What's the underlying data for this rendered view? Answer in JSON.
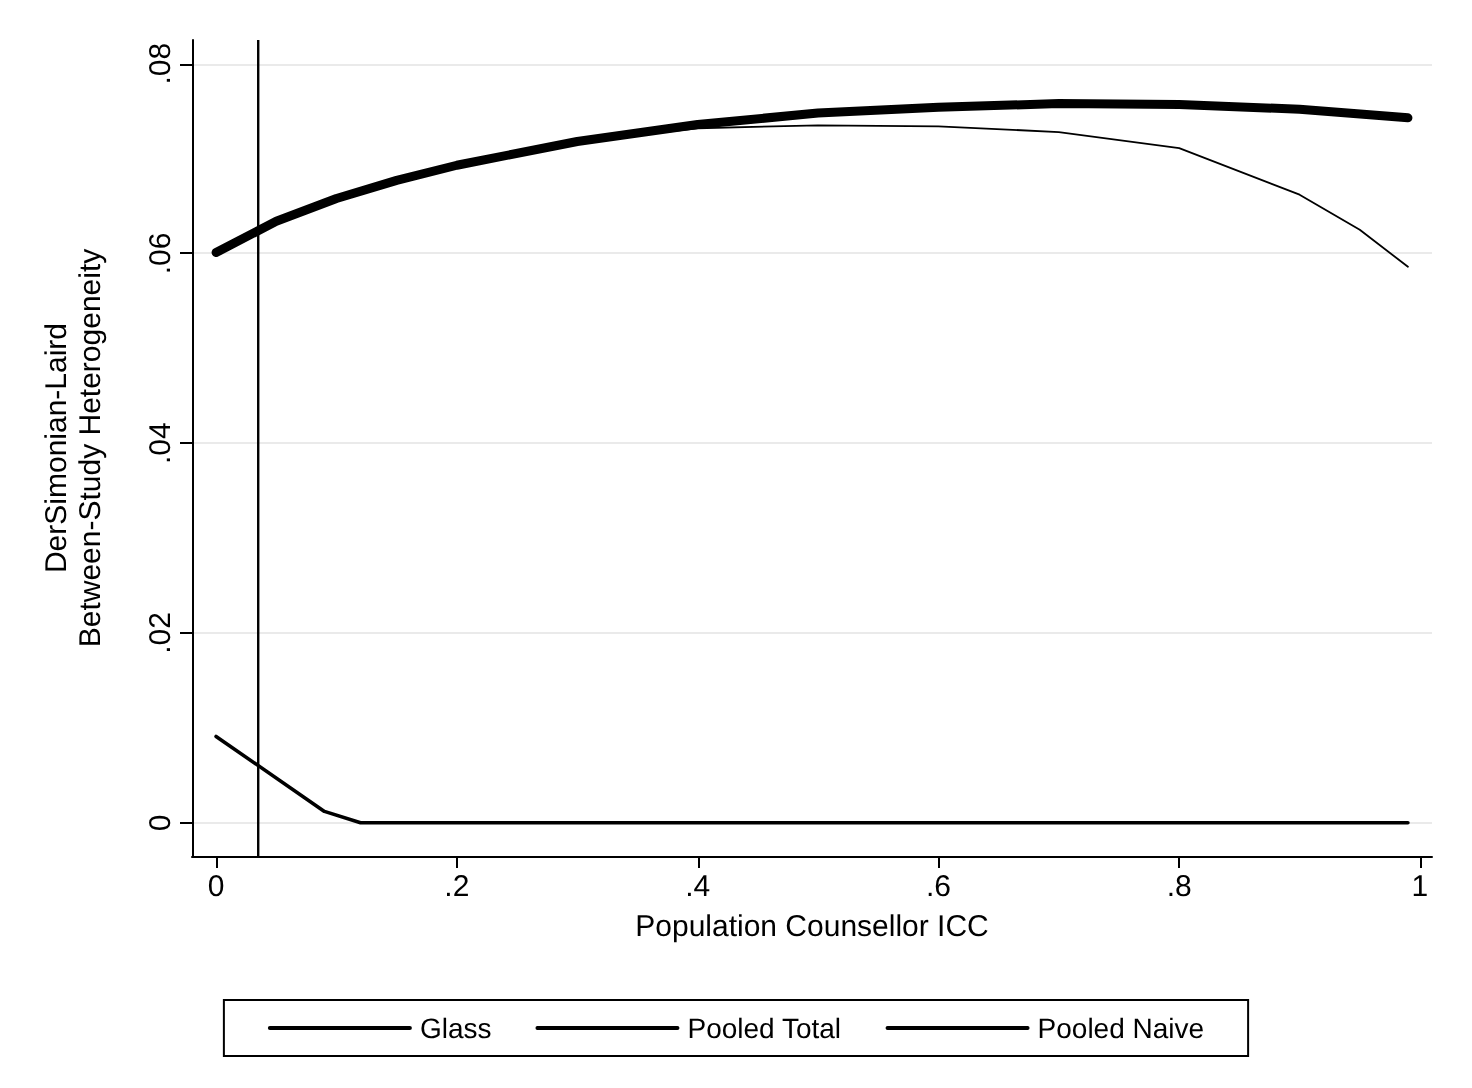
{
  "chart_data": {
    "type": "line",
    "xlabel": "Population Counsellor ICC",
    "ylabel": "DerSimonian-Laird\nBetween-Study Heterogeneity",
    "xlim": [
      -0.02,
      1.01
    ],
    "xticks": [
      {
        "value": 0,
        "label": "0"
      },
      {
        "value": 0.2,
        "label": ".2"
      },
      {
        "value": 0.4,
        "label": ".4"
      },
      {
        "value": 0.6,
        "label": ".6"
      },
      {
        "value": 0.8,
        "label": ".8"
      },
      {
        "value": 1,
        "label": "1"
      }
    ],
    "ylim": [
      -0.0035,
      0.0825
    ],
    "yticks": [
      {
        "value": 0,
        "label": "0"
      },
      {
        "value": 0.02,
        "label": ".02"
      },
      {
        "value": 0.04,
        "label": ".04"
      },
      {
        "value": 0.06,
        "label": ".06"
      },
      {
        "value": 0.08,
        "label": ".08"
      }
    ],
    "grid": "y",
    "legend": "bottom",
    "marker": "none",
    "ref_lines": [
      {
        "axis": "x",
        "value": 0.035,
        "color": "#000000"
      }
    ],
    "series": [
      {
        "name": "Glass",
        "color": "#000000",
        "x": [
          0,
          0.09,
          0.12,
          0.3,
          0.5,
          0.7,
          0.9,
          0.99
        ],
        "values": [
          0.0091,
          0.0012,
          0,
          0,
          0,
          0,
          0,
          0
        ]
      },
      {
        "name": "Pooled Total",
        "color": "#000000",
        "x": [
          0,
          0.05,
          0.1,
          0.15,
          0.2,
          0.3,
          0.4,
          0.5,
          0.6,
          0.7,
          0.8,
          0.9,
          0.95,
          0.99
        ],
        "values": [
          0.0601,
          0.0634,
          0.0658,
          0.0677,
          0.0693,
          0.0718,
          0.0732,
          0.0735,
          0.0734,
          0.0728,
          0.0711,
          0.0662,
          0.0625,
          0.0586
        ]
      },
      {
        "name": "Pooled Naive",
        "color": "#000000",
        "x": [
          0,
          0.05,
          0.1,
          0.15,
          0.2,
          0.3,
          0.4,
          0.5,
          0.6,
          0.7,
          0.8,
          0.9,
          0.99
        ],
        "values": [
          0.0601,
          0.0634,
          0.0658,
          0.0677,
          0.0693,
          0.0718,
          0.0736,
          0.0748,
          0.0754,
          0.0758,
          0.0757,
          0.0752,
          0.0743
        ]
      }
    ]
  }
}
